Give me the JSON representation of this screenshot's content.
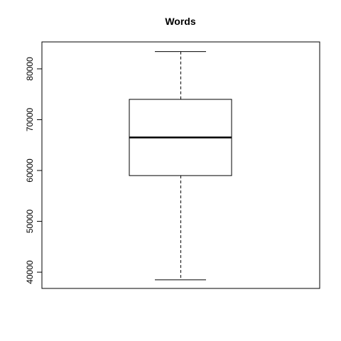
{
  "chart_data": {
    "type": "box",
    "title": "Words",
    "xlabel": "",
    "ylabel": "",
    "ylim": [
      36800,
      85300
    ],
    "yticks": [
      40000,
      50000,
      60000,
      70000,
      80000
    ],
    "yticklabels": [
      "40000",
      "50000",
      "60000",
      "70000",
      "80000"
    ],
    "box": {
      "min": 38500,
      "q1": 59000,
      "median": 66500,
      "q3": 74000,
      "max": 83400
    },
    "grid": false,
    "legend": "none"
  }
}
